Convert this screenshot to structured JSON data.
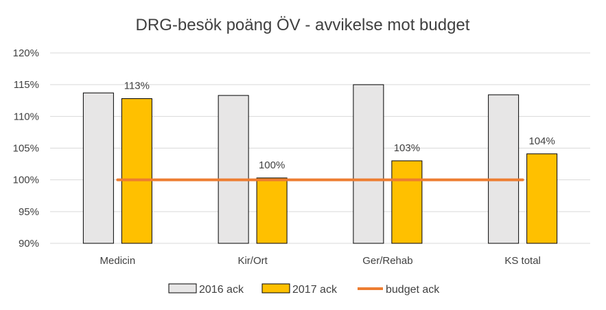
{
  "chart_data": {
    "type": "bar",
    "title": "DRG-besök poäng ÖV - avvikelse mot budget",
    "xlabel": "",
    "ylabel": "",
    "categories": [
      "Medicin",
      "Kir/Ort",
      "Ger/Rehab",
      "KS total"
    ],
    "y_ticks": [
      "90%",
      "95%",
      "100%",
      "105%",
      "110%",
      "115%",
      "120%"
    ],
    "ylim": [
      90,
      120
    ],
    "grid": true,
    "legend_position": "bottom",
    "series": [
      {
        "name": "2016 ack",
        "type": "bar",
        "color": "#e7e6e6",
        "values": [
          113.7,
          113.3,
          115.0,
          113.4
        ]
      },
      {
        "name": "2017 ack",
        "type": "bar",
        "color": "#ffc000",
        "values": [
          112.8,
          100.3,
          103.0,
          104.1
        ],
        "data_labels": [
          "113%",
          "100%",
          "103%",
          "104%"
        ]
      },
      {
        "name": "budget ack",
        "type": "line",
        "color": "#ed7d31",
        "values": [
          100,
          100,
          100,
          100
        ]
      }
    ]
  }
}
